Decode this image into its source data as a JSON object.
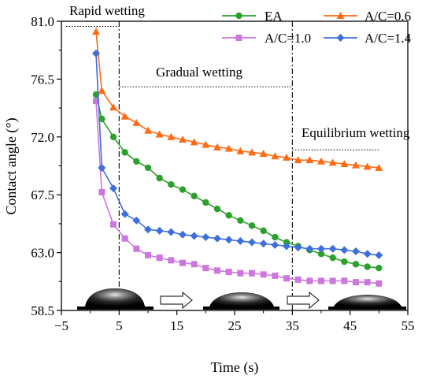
{
  "chart_data": {
    "type": "line",
    "xlabel": "Time (s)",
    "ylabel": "Contact angle (°)",
    "xlim": [
      -5,
      55
    ],
    "ylim": [
      58.5,
      81.0
    ],
    "x_ticks": [
      -5,
      5,
      15,
      25,
      35,
      45,
      55
    ],
    "x_tick_labels": [
      "−5",
      "5",
      "15",
      "25",
      "35",
      "45",
      "55"
    ],
    "y_ticks": [
      58.5,
      63.0,
      67.5,
      72.0,
      76.5,
      81.0
    ],
    "y_tick_labels": [
      "58.5",
      "63.0",
      "67.5",
      "72.0",
      "76.5",
      "81.0"
    ],
    "grid": false,
    "legend_position": "top-right",
    "series": [
      {
        "name": "EA",
        "color": "#2ca02c",
        "marker": "circle",
        "x": [
          1,
          2,
          4,
          6,
          8,
          10,
          12,
          14,
          16,
          18,
          20,
          22,
          24,
          26,
          28,
          30,
          32,
          34,
          36,
          38,
          40,
          42,
          44,
          46,
          48,
          50
        ],
        "y": [
          75.3,
          73.4,
          72.0,
          70.8,
          70.1,
          69.6,
          68.8,
          68.3,
          67.9,
          67.4,
          66.9,
          66.4,
          65.9,
          65.5,
          65.1,
          64.7,
          64.2,
          63.8,
          63.5,
          63.2,
          62.9,
          62.6,
          62.3,
          62.1,
          61.9,
          61.8
        ]
      },
      {
        "name": "A/C=0.6",
        "color": "#ff6a13",
        "marker": "triangle",
        "x": [
          1,
          2,
          4,
          6,
          8,
          10,
          12,
          14,
          16,
          18,
          20,
          22,
          24,
          26,
          28,
          30,
          32,
          34,
          36,
          38,
          40,
          42,
          44,
          46,
          48,
          50
        ],
        "y": [
          80.2,
          75.6,
          74.3,
          73.6,
          73.1,
          72.5,
          72.2,
          72.0,
          71.8,
          71.6,
          71.4,
          71.2,
          71.1,
          70.9,
          70.8,
          70.7,
          70.5,
          70.4,
          70.2,
          70.2,
          70.1,
          70.0,
          69.9,
          69.8,
          69.7,
          69.6
        ]
      },
      {
        "name": "A/C=1.0",
        "color": "#cc77dd",
        "marker": "square",
        "x": [
          1,
          2,
          4,
          6,
          8,
          10,
          12,
          14,
          16,
          18,
          20,
          22,
          24,
          26,
          28,
          30,
          32,
          34,
          36,
          38,
          40,
          42,
          44,
          46,
          48,
          50
        ],
        "y": [
          74.8,
          67.7,
          65.2,
          64.1,
          63.3,
          62.8,
          62.6,
          62.4,
          62.2,
          62.1,
          61.8,
          61.6,
          61.5,
          61.4,
          61.4,
          61.3,
          61.2,
          61.0,
          60.9,
          60.8,
          60.8,
          60.8,
          60.8,
          60.7,
          60.7,
          60.6
        ]
      },
      {
        "name": "A/C=1.4",
        "color": "#3e6fdc",
        "marker": "diamond",
        "x": [
          1,
          2,
          4,
          6,
          8,
          10,
          12,
          14,
          16,
          18,
          20,
          22,
          24,
          26,
          28,
          30,
          32,
          34,
          36,
          38,
          40,
          42,
          44,
          46,
          48,
          50
        ],
        "y": [
          78.5,
          69.6,
          68.0,
          66.0,
          65.5,
          64.8,
          64.7,
          64.6,
          64.4,
          64.3,
          64.2,
          64.1,
          64.0,
          63.9,
          63.8,
          63.7,
          63.6,
          63.5,
          63.4,
          63.3,
          63.3,
          63.3,
          63.2,
          63.1,
          62.9,
          62.8
        ]
      }
    ],
    "phase_dividers_x": [
      5,
      35
    ],
    "annotations": [
      {
        "text": "Rapid wetting",
        "line_x": [
          -5,
          5
        ],
        "line_y": 80.6
      },
      {
        "text": "Gradual wetting",
        "line_x": [
          5,
          35
        ],
        "line_y": 75.9
      },
      {
        "text": "Equilibrium wetting",
        "line_x": [
          35,
          50
        ],
        "line_y": 71.0
      }
    ]
  }
}
